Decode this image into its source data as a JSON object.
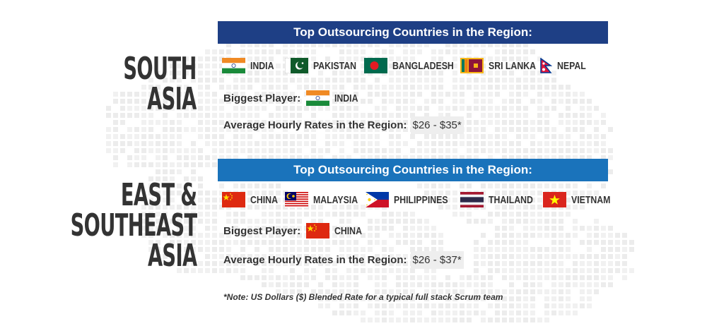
{
  "south_asia": {
    "title_lines": [
      "SOUTH",
      "ASIA"
    ],
    "banner": "Top Outsourcing Countries in the Region:",
    "banner_color": "#1e3f85",
    "countries": [
      "INDIA",
      "PAKISTAN",
      "BANGLADESH",
      "SRI LANKA",
      "NEPAL"
    ],
    "biggest_label": "Biggest Player:",
    "biggest_country": "INDIA",
    "rate_label": "Average Hourly Rates in the Region:",
    "rate_value": "$26 - $35*"
  },
  "east_asia": {
    "title_lines": [
      "EAST &",
      "SOUTHEAST",
      "ASIA"
    ],
    "banner": "Top Outsourcing Countries in the Region:",
    "banner_color": "#1a73bb",
    "countries": [
      "CHINA",
      "MALAYSIA",
      "PHILIPPINES",
      "THAILAND",
      "VIETNAM"
    ],
    "biggest_label": "Biggest Player:",
    "biggest_country": "CHINA",
    "rate_label": "Average Hourly Rates in the Region:",
    "rate_value": "$26 - $37*"
  },
  "note": "*Note: US Dollars ($) Blended Rate for a typical full stack Scrum team"
}
